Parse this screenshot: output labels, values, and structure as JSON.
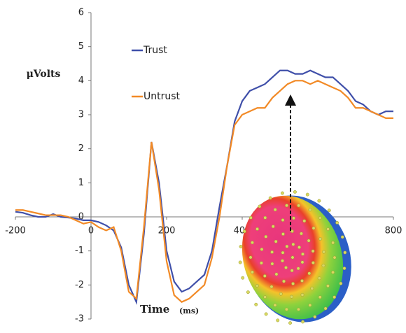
{
  "chart_data": {
    "type": "line",
    "y_label": "μVolts",
    "x_label": "Time",
    "x_unit": "(ms)",
    "x": [
      -200,
      -180,
      -160,
      -140,
      -120,
      -100,
      -80,
      -60,
      -40,
      -20,
      0,
      20,
      40,
      60,
      80,
      100,
      120,
      140,
      160,
      180,
      200,
      220,
      240,
      260,
      280,
      300,
      320,
      340,
      360,
      380,
      400,
      420,
      440,
      460,
      480,
      500,
      520,
      540,
      560,
      580,
      600,
      620,
      640,
      660,
      680,
      700,
      720,
      740,
      760,
      780,
      800
    ],
    "series": [
      {
        "name": "Trust",
        "color": "#3f4fa9",
        "values": [
          0.15,
          0.12,
          0.05,
          0.0,
          0.0,
          0.08,
          0.0,
          -0.02,
          -0.05,
          -0.1,
          -0.1,
          -0.15,
          -0.25,
          -0.4,
          -0.9,
          -2.0,
          -2.5,
          -0.5,
          2.2,
          1.0,
          -1.0,
          -1.9,
          -2.2,
          -2.1,
          -1.9,
          -1.7,
          -1.0,
          0.3,
          1.5,
          2.8,
          3.4,
          3.7,
          3.8,
          3.9,
          4.1,
          4.3,
          4.3,
          4.2,
          4.2,
          4.3,
          4.2,
          4.1,
          4.1,
          3.9,
          3.7,
          3.4,
          3.3,
          3.1,
          3.0,
          3.1,
          3.1
        ]
      },
      {
        "name": "Untrust",
        "color": "#f28a26",
        "values": [
          0.2,
          0.2,
          0.15,
          0.1,
          0.05,
          0.05,
          0.05,
          0.0,
          -0.1,
          -0.2,
          -0.15,
          -0.3,
          -0.4,
          -0.3,
          -1.0,
          -2.2,
          -2.4,
          -0.3,
          2.2,
          0.8,
          -1.3,
          -2.3,
          -2.5,
          -2.4,
          -2.2,
          -2.0,
          -1.2,
          0.0,
          1.5,
          2.7,
          3.0,
          3.1,
          3.2,
          3.2,
          3.5,
          3.7,
          3.9,
          4.0,
          4.0,
          3.9,
          4.0,
          3.9,
          3.8,
          3.7,
          3.5,
          3.2,
          3.2,
          3.1,
          3.0,
          2.9,
          2.9
        ]
      }
    ],
    "xlim": [
      -200,
      800
    ],
    "xticks": [
      -200,
      0,
      200,
      400,
      800
    ],
    "ylim": [
      -3,
      6
    ],
    "yticks": [
      -3,
      -2,
      -1,
      0,
      1,
      2,
      3,
      4,
      5,
      6
    ]
  }
}
